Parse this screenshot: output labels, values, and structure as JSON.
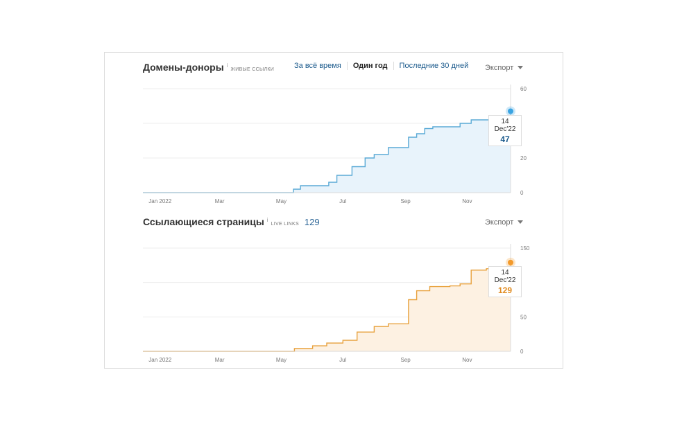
{
  "domains": {
    "title": "Домены-доноры",
    "info": "i",
    "subtitle": "живые ссылки",
    "tabs": [
      {
        "label": "За всё время",
        "active": false
      },
      {
        "label": "Один год",
        "active": true
      },
      {
        "label": "Последние 30 дней",
        "active": false
      }
    ],
    "export_label": "Экспорт",
    "tooltip": {
      "date": "14 Dec'22",
      "value": "47"
    },
    "colors": {
      "line": "#5aaad6",
      "fill": "#e8f3fb",
      "marker": "#3aa4e2",
      "value": "#1b5a8c"
    }
  },
  "pages": {
    "title": "Ссылающиеся страницы",
    "info": "i",
    "subtitle": "live links",
    "count": "129",
    "export_label": "Экспорт",
    "tooltip": {
      "date": "14 Dec'22",
      "value": "129"
    },
    "colors": {
      "line": "#e8a13c",
      "fill": "#fdf1e2",
      "marker": "#f39a2b",
      "value": "#e08a1e"
    }
  },
  "chart_data": [
    {
      "type": "area",
      "title": "Домены-доноры",
      "x_ticks": [
        "Jan 2022",
        "Mar",
        "May",
        "Jul",
        "Sep",
        "Nov"
      ],
      "y_ticks": [
        "60",
        "20",
        "0"
      ],
      "ylim": [
        0,
        60
      ],
      "grid": true,
      "x": [
        "2021-12-15",
        "2022-05-07",
        "2022-05-13",
        "2022-05-20",
        "2022-06-10",
        "2022-06-17",
        "2022-06-25",
        "2022-07-10",
        "2022-07-23",
        "2022-08-01",
        "2022-08-15",
        "2022-08-25",
        "2022-09-04",
        "2022-09-12",
        "2022-09-20",
        "2022-09-28",
        "2022-10-10",
        "2022-10-25",
        "2022-11-05",
        "2022-11-15",
        "2022-11-25",
        "2022-12-06",
        "2022-12-14"
      ],
      "values": [
        0,
        0,
        2,
        4,
        4,
        6,
        10,
        15,
        20,
        22,
        26,
        26,
        32,
        34,
        37,
        38,
        38,
        40,
        42,
        42,
        40,
        44,
        47
      ]
    },
    {
      "type": "area",
      "title": "Ссылающиеся страницы",
      "x_ticks": [
        "Jan 2022",
        "Mar",
        "May",
        "Jul",
        "Sep",
        "Nov"
      ],
      "y_ticks": [
        "150",
        "50",
        "0"
      ],
      "ylim": [
        0,
        150
      ],
      "grid": true,
      "x": [
        "2021-12-15",
        "2022-05-07",
        "2022-05-14",
        "2022-06-01",
        "2022-06-15",
        "2022-07-01",
        "2022-07-15",
        "2022-08-01",
        "2022-08-15",
        "2022-08-29",
        "2022-09-04",
        "2022-09-12",
        "2022-09-25",
        "2022-10-15",
        "2022-10-25",
        "2022-11-05",
        "2022-11-20",
        "2022-12-05",
        "2022-12-14"
      ],
      "values": [
        0,
        0,
        4,
        8,
        12,
        16,
        28,
        36,
        40,
        40,
        75,
        88,
        94,
        95,
        98,
        118,
        120,
        122,
        129
      ]
    }
  ]
}
